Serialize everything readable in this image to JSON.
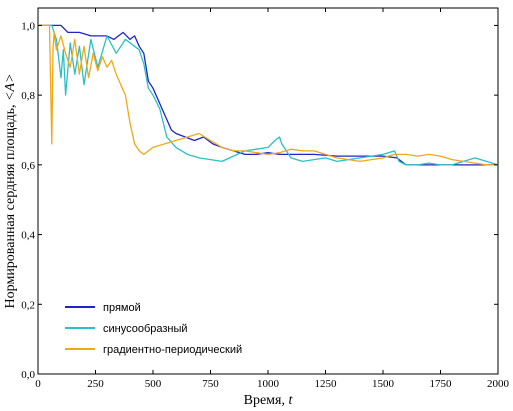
{
  "chart_data": {
    "type": "line",
    "xlabel": "Время, t",
    "xlabel_main": "Время, ",
    "xlabel_var": "t",
    "ylabel": "Нормированная сердняя площадь, <A>",
    "ylabel_main": "Нормированная сердняя площадь, ",
    "ylabel_var": "<A>",
    "xlim": [
      0,
      2000
    ],
    "ylim": [
      0,
      1.05
    ],
    "x_ticks": [
      0,
      250,
      500,
      750,
      1000,
      1250,
      1500,
      1750,
      2000
    ],
    "x_tick_labels": [
      "0",
      "250",
      "500",
      "750",
      "1000",
      "1250",
      "1500",
      "1750",
      "2000"
    ],
    "y_ticks": [
      0,
      0.2,
      0.4,
      0.6,
      0.8,
      1.0
    ],
    "y_tick_labels": [
      "0,0",
      "0,2",
      "0,4",
      "0,6",
      "0,8",
      "1,0"
    ],
    "grid": false,
    "legend_position": "bottom-left",
    "series": [
      {
        "name": "прямой",
        "color": "#1f24c8",
        "x": [
          0,
          100,
          130,
          180,
          230,
          260,
          300,
          330,
          370,
          400,
          420,
          440,
          460,
          480,
          500,
          520,
          540,
          560,
          580,
          600,
          640,
          680,
          720,
          760,
          800,
          850,
          900,
          950,
          1000,
          1050,
          1100,
          1150,
          1200,
          1300,
          1400,
          1500,
          1560,
          1600,
          1700,
          1800,
          1900,
          2000
        ],
        "y": [
          1.0,
          1.0,
          0.98,
          0.98,
          0.97,
          0.97,
          0.97,
          0.96,
          0.98,
          0.96,
          0.97,
          0.94,
          0.92,
          0.84,
          0.82,
          0.79,
          0.76,
          0.73,
          0.7,
          0.69,
          0.68,
          0.67,
          0.68,
          0.66,
          0.65,
          0.64,
          0.63,
          0.63,
          0.635,
          0.63,
          0.63,
          0.63,
          0.63,
          0.625,
          0.625,
          0.625,
          0.62,
          0.6,
          0.6,
          0.6,
          0.6,
          0.6
        ]
      },
      {
        "name": "синусообразный",
        "color": "#2bbfc8",
        "x": [
          0,
          60,
          80,
          100,
          110,
          120,
          140,
          160,
          180,
          200,
          230,
          260,
          300,
          340,
          380,
          420,
          440,
          460,
          480,
          500,
          530,
          560,
          600,
          650,
          700,
          750,
          800,
          850,
          900,
          950,
          1000,
          1030,
          1050,
          1060,
          1080,
          1100,
          1150,
          1200,
          1250,
          1300,
          1350,
          1400,
          1450,
          1500,
          1550,
          1570,
          1600,
          1650,
          1700,
          1750,
          1800,
          1850,
          1900,
          1950,
          2000
        ],
        "y": [
          1.0,
          1.0,
          0.96,
          0.85,
          0.93,
          0.8,
          0.95,
          0.86,
          0.94,
          0.83,
          0.96,
          0.88,
          0.97,
          0.92,
          0.96,
          0.94,
          0.93,
          0.89,
          0.82,
          0.8,
          0.76,
          0.68,
          0.65,
          0.63,
          0.62,
          0.615,
          0.61,
          0.625,
          0.64,
          0.645,
          0.65,
          0.67,
          0.68,
          0.66,
          0.64,
          0.62,
          0.61,
          0.615,
          0.62,
          0.61,
          0.615,
          0.62,
          0.625,
          0.63,
          0.64,
          0.61,
          0.6,
          0.6,
          0.605,
          0.6,
          0.6,
          0.61,
          0.62,
          0.61,
          0.6
        ]
      },
      {
        "name": "градиентно-периодический",
        "color": "#f0a818",
        "x": [
          0,
          50,
          60,
          65,
          70,
          80,
          100,
          120,
          140,
          160,
          180,
          200,
          220,
          240,
          260,
          280,
          300,
          320,
          340,
          360,
          380,
          390,
          400,
          420,
          440,
          460,
          480,
          500,
          550,
          600,
          650,
          700,
          750,
          800,
          850,
          900,
          950,
          1000,
          1050,
          1100,
          1150,
          1200,
          1250,
          1300,
          1350,
          1400,
          1450,
          1500,
          1550,
          1600,
          1650,
          1700,
          1750,
          1800,
          1850,
          1900,
          1950,
          2000
        ],
        "y": [
          1.0,
          1.0,
          0.66,
          0.93,
          0.98,
          0.93,
          0.97,
          0.92,
          0.88,
          0.96,
          0.86,
          0.94,
          0.85,
          0.92,
          0.87,
          0.91,
          0.88,
          0.9,
          0.86,
          0.83,
          0.8,
          0.76,
          0.72,
          0.66,
          0.64,
          0.63,
          0.64,
          0.65,
          0.66,
          0.67,
          0.68,
          0.69,
          0.67,
          0.65,
          0.64,
          0.64,
          0.635,
          0.63,
          0.635,
          0.645,
          0.64,
          0.64,
          0.63,
          0.62,
          0.615,
          0.61,
          0.615,
          0.62,
          0.63,
          0.63,
          0.625,
          0.63,
          0.625,
          0.615,
          0.61,
          0.605,
          0.6,
          0.6
        ]
      }
    ]
  }
}
